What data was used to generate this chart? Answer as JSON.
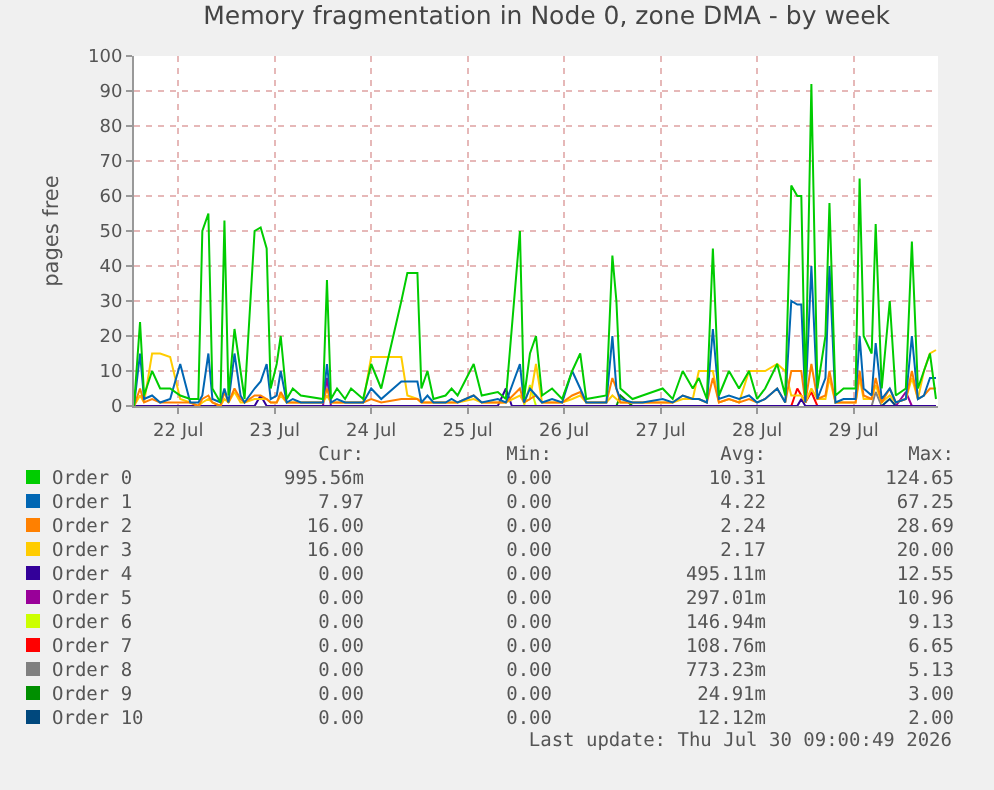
{
  "chart_data": {
    "type": "line",
    "title": "Memory fragmentation in Node 0, zone DMA - by week",
    "ylabel": "pages free",
    "x": [
      "2026-07-22T01:00",
      "2026-07-22T02:30",
      "2026-07-22T03:30",
      "2026-07-22T05:30",
      "2026-07-22T07:30",
      "2026-07-22T10:00",
      "2026-07-22T12:30",
      "2026-07-22T15:00",
      "2026-07-22T17:00",
      "2026-07-22T18:00",
      "2026-07-22T19:30",
      "2026-07-22T20:30",
      "2026-07-22T22:30",
      "2026-07-22T23:30",
      "2026-07-23T00:30",
      "2026-07-23T02:00",
      "2026-07-23T03:30",
      "2026-07-23T04:30",
      "2026-07-23T07:00",
      "2026-07-23T08:30",
      "2026-07-23T10:00",
      "2026-07-23T11:00",
      "2026-07-23T12:30",
      "2026-07-23T13:30",
      "2026-07-23T15:00",
      "2026-07-23T16:30",
      "2026-07-23T18:30",
      "2026-07-24T00:00",
      "2026-07-24T01:00",
      "2026-07-24T02:00",
      "2026-07-24T03:30",
      "2026-07-24T05:30",
      "2026-07-24T07:00",
      "2026-07-24T10:00",
      "2026-07-24T12:00",
      "2026-07-24T14:30",
      "2026-07-24T19:30",
      "2026-07-24T21:00",
      "2026-07-24T23:30",
      "2026-07-25T00:30",
      "2026-07-25T02:00",
      "2026-07-25T03:30",
      "2026-07-25T06:30",
      "2026-07-25T08:00",
      "2026-07-25T09:30",
      "2026-07-25T13:30",
      "2026-07-25T15:30",
      "2026-07-25T19:30",
      "2026-07-25T21:30",
      "2026-07-26T01:00",
      "2026-07-26T02:00",
      "2026-07-26T03:30",
      "2026-07-26T05:00",
      "2026-07-26T06:30",
      "2026-07-26T09:00",
      "2026-07-26T11:30",
      "2026-07-26T14:00",
      "2026-07-26T16:00",
      "2026-07-26T17:30",
      "2026-07-26T22:30",
      "2026-07-27T00:00",
      "2026-07-27T01:00",
      "2026-07-27T02:00",
      "2026-07-27T05:00",
      "2026-07-27T07:30",
      "2026-07-27T12:30",
      "2026-07-27T15:00",
      "2026-07-27T17:30",
      "2026-07-27T20:00",
      "2026-07-27T21:30",
      "2026-07-27T23:30",
      "2026-07-28T01:00",
      "2026-07-28T02:30",
      "2026-07-28T05:00",
      "2026-07-28T07:30",
      "2026-07-28T10:00",
      "2026-07-28T12:00",
      "2026-07-28T14:00",
      "2026-07-28T17:00",
      "2026-07-28T19:00",
      "2026-07-28T20:30",
      "2026-07-28T22:00",
      "2026-07-28T23:00",
      "2026-07-29T00:00",
      "2026-07-29T01:30",
      "2026-07-29T03:00",
      "2026-07-29T05:00",
      "2026-07-29T06:00",
      "2026-07-29T07:30",
      "2026-07-29T09:30",
      "2026-07-29T12:30",
      "2026-07-29T13:30",
      "2026-07-29T14:30",
      "2026-07-29T16:30",
      "2026-07-29T17:30",
      "2026-07-29T19:00",
      "2026-07-29T21:00",
      "2026-07-29T22:30",
      "2026-07-30T01:00",
      "2026-07-30T02:30",
      "2026-07-30T04:00",
      "2026-07-30T05:30",
      "2026-07-30T07:00",
      "2026-07-30T08:30"
    ],
    "series": [
      {
        "name": "Order 0",
        "color": "#00cc00",
        "values": [
          0,
          24,
          3,
          10,
          5,
          5,
          3,
          2,
          2,
          50,
          55,
          5,
          1,
          53,
          3,
          22,
          10,
          2,
          50,
          51,
          45,
          5,
          12,
          20,
          2,
          5,
          3,
          2,
          36,
          2,
          5,
          2,
          5,
          2,
          12,
          5,
          30,
          38,
          38,
          5,
          10,
          2,
          3,
          5,
          3,
          12,
          3,
          4,
          2,
          50,
          2,
          15,
          20,
          3,
          5,
          2,
          10,
          15,
          2,
          3,
          43,
          30,
          5,
          2,
          3,
          5,
          2,
          10,
          5,
          8,
          2,
          45,
          3,
          10,
          5,
          10,
          2,
          5,
          12,
          3,
          63,
          60,
          60,
          3,
          92,
          5,
          20,
          58,
          3,
          5,
          5,
          65,
          20,
          15,
          52,
          5,
          30,
          3,
          5,
          47,
          5,
          10,
          15,
          2
        ]
      },
      {
        "name": "Order 1",
        "color": "#0066b3",
        "values": [
          0,
          15,
          2,
          3,
          1,
          2,
          12,
          1,
          1,
          3,
          15,
          2,
          1,
          5,
          1,
          15,
          3,
          1,
          5,
          7,
          12,
          2,
          3,
          10,
          1,
          2,
          1,
          1,
          12,
          1,
          2,
          1,
          1,
          1,
          5,
          2,
          7,
          7,
          7,
          1,
          3,
          1,
          1,
          2,
          1,
          3,
          1,
          2,
          1,
          12,
          1,
          5,
          3,
          1,
          2,
          1,
          10,
          5,
          1,
          1,
          20,
          5,
          2,
          1,
          1,
          2,
          1,
          3,
          2,
          2,
          1,
          22,
          2,
          3,
          2,
          3,
          1,
          2,
          5,
          1,
          30,
          29,
          29,
          1,
          40,
          2,
          8,
          40,
          1,
          2,
          2,
          20,
          5,
          3,
          18,
          2,
          5,
          1,
          2,
          20,
          2,
          3,
          8,
          8
        ]
      },
      {
        "name": "Order 2",
        "color": "#ff8000",
        "values": [
          0,
          5,
          1,
          2,
          1,
          1,
          1,
          1,
          0,
          2,
          3,
          1,
          0,
          4,
          1,
          5,
          2,
          1,
          3,
          3,
          2,
          1,
          1,
          4,
          1,
          1,
          1,
          1,
          5,
          1,
          1,
          1,
          1,
          1,
          2,
          1,
          2,
          2,
          2,
          1,
          1,
          1,
          1,
          1,
          1,
          3,
          1,
          1,
          1,
          5,
          1,
          2,
          3,
          1,
          1,
          1,
          3,
          4,
          1,
          1,
          8,
          5,
          1,
          1,
          1,
          1,
          1,
          3,
          2,
          2,
          1,
          8,
          1,
          2,
          1,
          2,
          1,
          2,
          5,
          1,
          10,
          10,
          10,
          1,
          12,
          2,
          3,
          10,
          1,
          1,
          1,
          10,
          3,
          2,
          8,
          1,
          5,
          1,
          2,
          10,
          2,
          3,
          5,
          5
        ]
      },
      {
        "name": "Order 3",
        "color": "#ffcc00",
        "values": [
          0,
          3,
          1,
          15,
          15,
          14,
          2,
          1,
          0,
          1,
          2,
          1,
          0,
          2,
          1,
          4,
          1,
          1,
          2,
          2,
          2,
          1,
          1,
          3,
          1,
          1,
          1,
          1,
          3,
          1,
          1,
          1,
          1,
          1,
          14,
          14,
          14,
          3,
          2,
          1,
          1,
          1,
          1,
          1,
          1,
          2,
          1,
          1,
          1,
          3,
          1,
          2,
          12,
          1,
          1,
          1,
          2,
          3,
          1,
          1,
          3,
          2,
          1,
          1,
          1,
          1,
          1,
          2,
          2,
          10,
          10,
          10,
          1,
          2,
          1,
          10,
          10,
          10,
          12,
          10,
          3,
          3,
          3,
          1,
          5,
          2,
          2,
          8,
          1,
          1,
          1,
          8,
          2,
          2,
          6,
          1,
          3,
          1,
          2,
          8,
          2,
          10,
          15,
          16
        ]
      },
      {
        "name": "Order 4",
        "color": "#330099",
        "x": [
          "2026-07-22T01:00",
          "2026-07-23T07:00",
          "2026-07-23T08:30",
          "2026-07-23T10:00",
          "2026-07-25T19:30",
          "2026-07-25T21:30",
          "2026-07-25T23:00",
          "2026-07-28T22:00",
          "2026-07-28T23:00",
          "2026-07-29T00:00",
          "2026-07-30T08:30"
        ],
        "values": [
          0,
          0,
          3,
          0,
          0,
          5,
          0,
          0,
          2,
          0,
          0
        ]
      },
      {
        "name": "Order 5",
        "color": "#990099",
        "x": [
          "2026-07-24T00:00",
          "2026-07-24T01:00",
          "2026-07-24T02:00",
          "2026-07-27T00:00",
          "2026-07-29T22:30",
          "2026-07-30T01:00",
          "2026-07-30T02:30"
        ],
        "values": [
          0,
          8,
          0,
          null,
          0,
          4,
          0
        ]
      },
      {
        "name": "Order 6",
        "color": "#ccff00",
        "x": [
          "2026-07-26T02:00",
          "2026-07-26T03:30",
          "2026-07-26T05:00"
        ],
        "values": [
          0,
          6,
          0
        ]
      },
      {
        "name": "Order 7",
        "color": "#ff0000",
        "x": [
          "2026-07-28T20:30",
          "2026-07-28T22:00",
          "2026-07-29T00:00",
          "2026-07-29T01:30",
          "2026-07-29T03:00"
        ],
        "values": [
          0,
          5,
          1,
          4,
          0
        ]
      },
      {
        "name": "Order 8",
        "color": "#808080",
        "x": [
          "2026-07-29T16:30",
          "2026-07-29T17:30",
          "2026-07-29T19:00"
        ],
        "values": [
          0,
          4,
          0
        ]
      },
      {
        "name": "Order 9",
        "color": "#008f00",
        "x": [
          "2026-07-27T01:00",
          "2026-07-27T02:00",
          "2026-07-27T05:00"
        ],
        "values": [
          0,
          3,
          0
        ]
      },
      {
        "name": "Order 10",
        "color": "#00487d",
        "x": [
          "2026-07-29T19:00",
          "2026-07-29T21:00",
          "2026-07-29T22:30"
        ],
        "values": [
          0,
          2,
          0
        ]
      }
    ],
    "xlim": [
      "2026-07-22T01:00",
      "2026-07-30T09:00"
    ],
    "xticks": [
      {
        "value": "2026-07-22T12:00",
        "label": "22 Jul"
      },
      {
        "value": "2026-07-23T12:00",
        "label": "23 Jul"
      },
      {
        "value": "2026-07-24T12:00",
        "label": "24 Jul"
      },
      {
        "value": "2026-07-25T12:00",
        "label": "25 Jul"
      },
      {
        "value": "2026-07-26T12:00",
        "label": "26 Jul"
      },
      {
        "value": "2026-07-27T12:00",
        "label": "27 Jul"
      },
      {
        "value": "2026-07-28T12:00",
        "label": "28 Jul"
      },
      {
        "value": "2026-07-29T12:00",
        "label": "29 Jul"
      }
    ],
    "ylim": [
      0,
      100
    ],
    "yticks": [
      0,
      10,
      20,
      30,
      40,
      50,
      60,
      70,
      80,
      90,
      100
    ],
    "grid": true,
    "legend": "bottom",
    "line_style": "solid",
    "annotations": [
      "Cur:",
      "Min:",
      "Avg:",
      "Max:",
      "995.56m",
      "0.00",
      "10.31",
      "124.65",
      "7.97",
      "0.00",
      "4.22",
      "67.25",
      "16.00",
      "0.00",
      "2.24",
      "28.69",
      "16.00",
      "0.00",
      "2.17",
      "20.00",
      "0.00",
      "0.00",
      "495.11m",
      "12.55",
      "0.00",
      "0.00",
      "297.01m",
      "10.96",
      "0.00",
      "0.00",
      "146.94m",
      "9.13",
      "0.00",
      "0.00",
      "108.76m",
      "6.65",
      "0.00",
      "0.00",
      "773.23m",
      "5.13",
      "0.00",
      "0.00",
      "24.91m",
      "3.00",
      "0.00",
      "0.00",
      "12.12m",
      "2.00",
      "Last update: Thu Jul 30 09:00:49 2026"
    ]
  }
}
